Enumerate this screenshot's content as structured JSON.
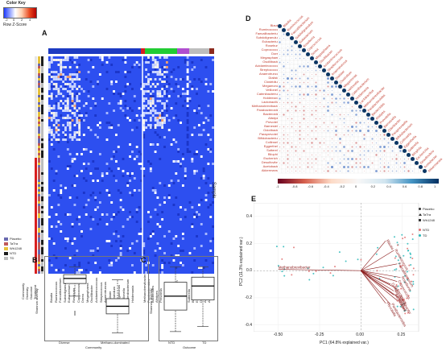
{
  "colorkey": {
    "title": "Color Key",
    "ticks": [
      "-2",
      "0",
      "2",
      "4"
    ],
    "label": "Row Z-Score"
  },
  "panels": {
    "a": "A",
    "b": "B",
    "c": "C",
    "d": "D",
    "e": "E"
  },
  "heatmap": {
    "sample_label": "Sample",
    "row_bar_labels": [
      "Community",
      "Diversity",
      "Outcome",
      "Treatment"
    ],
    "top_colors": [
      "#1d3bc2",
      "#d81e1e",
      "#22cc33",
      "#b04ecf",
      "#bdbdbd",
      "#8c2a1e"
    ],
    "group_legend": [
      "Placebo",
      "TaTra",
      "Wh1248",
      "NTD",
      "TD"
    ],
    "group_colors": [
      "#6a6ab0",
      "#c05a5a",
      "#e7c23c",
      "#1c1c1c",
      "#bdbdbd"
    ],
    "left_col_labels": [
      "Blautia",
      "Ruminococcus",
      "Faecalibacterium",
      "Subdoligranulum",
      "Eubacterium",
      "Roseburia",
      "Coprococcus",
      "Dorea",
      "Megasphaera",
      "Oscillibacter",
      "Acidaminococcus",
      "Streptococcus",
      "Anaerotruncus",
      "Dialister",
      "Clostridium",
      "Megamonas",
      "Veillonella",
      "Catenibacterium",
      "Holdemania"
    ],
    "right_col_labels": [
      "Methanobrevibacter",
      "Parabacteroides",
      "Bacteroides",
      "Alistipes",
      "Prevotella",
      "Barnesiella",
      "Odoribacter",
      "Paraprevotella",
      "Bifidobacterium",
      "Collinsella",
      "Eggerthella",
      "Sutterella",
      "Bilophila",
      "Escherichia",
      "Desulfovibrio",
      "Acetobacter",
      "Akkermansia"
    ]
  },
  "boxB": {
    "ylabel": "Shannon diversity",
    "xlabel": "Community",
    "categories": [
      "Diverse",
      "Methano-dominated"
    ],
    "yticks": [
      "3.0",
      "2.5",
      "2.0",
      "1.5",
      "1.0",
      "0.5"
    ]
  },
  "boxC": {
    "ylabel": "Shannon diversity",
    "xlabel": "Outcome",
    "categories": [
      "NTD",
      "TD"
    ],
    "yticks": [
      "3.0",
      "2.5",
      "2.0",
      "1.5",
      "1.0",
      "0.5"
    ]
  },
  "corr": {
    "labels": [
      "Blautia",
      "Ruminococcus",
      "Faecalibacterium",
      "Subdoligranulum",
      "Eubacterium",
      "Roseburia",
      "Coprococcus",
      "Dorea",
      "Megasphaera",
      "Oscillibacter",
      "Acidaminococcus",
      "Streptococcus",
      "Anaerotruncus",
      "Dialister",
      "Clostridium",
      "Megamonas",
      "Veillonella",
      "Catenibacterium",
      "Holdemania",
      "Lactobacillus",
      "Methanobrevibacter",
      "Parabacteroides",
      "Bacteroides",
      "Alistipes",
      "Prevotella",
      "Barnesiella",
      "Odoribacter",
      "Paraprevotella",
      "Bifidobacterium",
      "Collinsella",
      "Eggerthella",
      "Sutterella",
      "Bilophila",
      "Escherichia",
      "Desulfovibrio",
      "Acetobacter",
      "Akkermansia"
    ],
    "scale_ticks": [
      "-1",
      "-0.8",
      "-0.6",
      "-0.4",
      "-0.2",
      "0",
      "0.2",
      "0.4",
      "0.6",
      "0.8",
      "1"
    ]
  },
  "pca": {
    "xlabel": "PC1 (64.8% explained var.)",
    "ylabel": "PC2 (11.3% explained var.)",
    "xticks": [
      "-0.50",
      "-0.25",
      "0.00",
      "0.25"
    ],
    "yticks": [
      "0.4",
      "0.2",
      "0.0",
      "-0.2",
      "-0.4"
    ],
    "legend_treatment": [
      "Placebo",
      "TaTra",
      "Wh1248"
    ],
    "legend_outcome": [
      "NTD",
      "TD"
    ],
    "arrow_labels": [
      "Blautia",
      "Methanobrevibacter",
      "Ruminococcus",
      "Faecalibacterium",
      "Roseburia",
      "Coprococcus",
      "Eubacterium",
      "Dorea",
      "Clostridium",
      "Oscillibacter",
      "Alistipes",
      "Bacteroides",
      "Prevotella",
      "Parabacteroides"
    ],
    "colors": {
      "ntd": "#e07070",
      "td": "#2ab8b8"
    }
  },
  "chart_data": [
    {
      "type": "heatmap",
      "title": "",
      "note": "Row Z-score heatmap of genera (columns) by sample (rows)",
      "colorscale_range": [
        -2,
        4
      ]
    },
    {
      "type": "box",
      "categories": [
        "Diverse",
        "Methano-dominated"
      ],
      "series": [
        {
          "values_median": [
            2.4,
            1.3
          ],
          "q1": [
            2.2,
            1.0
          ],
          "q3": [
            2.55,
            1.6
          ],
          "whisker_low": [
            1.7,
            0.25
          ],
          "whisker_high": [
            2.85,
            2.35
          ]
        }
      ],
      "xlabel": "Community",
      "ylabel": "Shannon diversity"
    },
    {
      "type": "box",
      "categories": [
        "NTD",
        "TD"
      ],
      "series": [
        {
          "values_median": [
            1.7,
            2.1
          ],
          "q1": [
            1.15,
            1.55
          ],
          "q3": [
            2.25,
            2.45
          ],
          "whisker_low": [
            0.3,
            0.5
          ],
          "whisker_high": [
            2.85,
            2.85
          ]
        }
      ],
      "xlabel": "Outcome",
      "ylabel": "Shannon diversity"
    },
    {
      "type": "heatmap",
      "note": "Correlation matrix of genera",
      "range": [
        -1,
        1
      ]
    },
    {
      "type": "scatter",
      "xlabel": "PC1 (64.8% explained var.)",
      "ylabel": "PC2 (11.3% explained var.)",
      "xlim": [
        -0.65,
        0.35
      ],
      "ylim": [
        -0.45,
        0.5
      ]
    }
  ]
}
